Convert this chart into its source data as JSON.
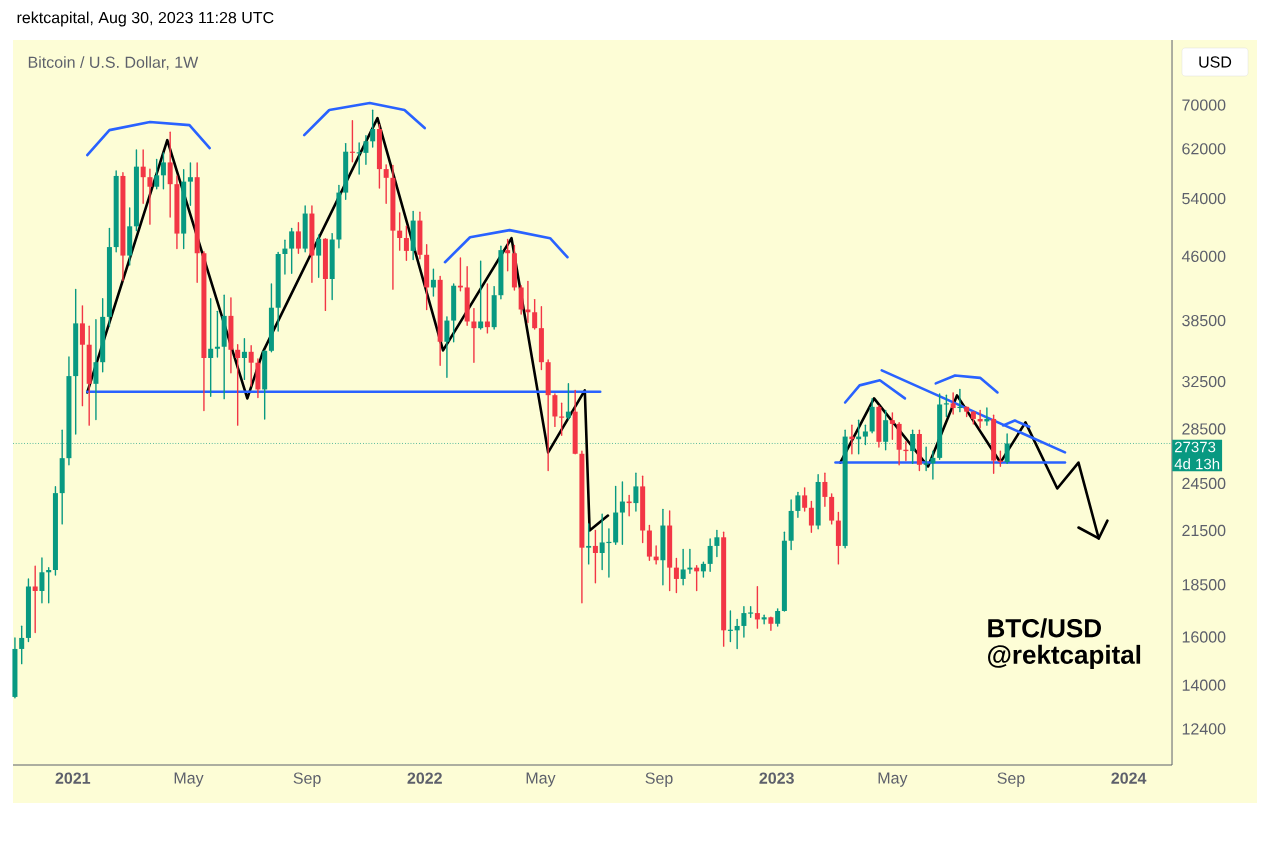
{
  "chart_data": {
    "type": "candlestick",
    "subtitle": "rektcapital, Aug 30, 2023 11:28 UTC",
    "title": "Bitcoin / U.S. Dollar, 1W",
    "annotations": [
      "USD",
      "4d 13h",
      "BTC/USD",
      "@rektcapital"
    ],
    "x": [
      "2020-11-02",
      "2020-11-09",
      "2020-11-16",
      "2020-11-23",
      "2020-11-30",
      "2020-12-07",
      "2020-12-14",
      "2020-12-21",
      "2020-12-28",
      "2021-01-04",
      "2021-01-11",
      "2021-01-18",
      "2021-01-25",
      "2021-02-01",
      "2021-02-08",
      "2021-02-15",
      "2021-02-22",
      "2021-03-01",
      "2021-03-08",
      "2021-03-15",
      "2021-03-22",
      "2021-03-29",
      "2021-04-05",
      "2021-04-12",
      "2021-04-19",
      "2021-04-26",
      "2021-05-03",
      "2021-05-10",
      "2021-05-17",
      "2021-05-24",
      "2021-05-31",
      "2021-06-07",
      "2021-06-14",
      "2021-06-21",
      "2021-06-28",
      "2021-07-05",
      "2021-07-12",
      "2021-07-19",
      "2021-07-26",
      "2021-08-02",
      "2021-08-09",
      "2021-08-16",
      "2021-08-23",
      "2021-08-30",
      "2021-09-06",
      "2021-09-13",
      "2021-09-20",
      "2021-09-27",
      "2021-10-04",
      "2021-10-11",
      "2021-10-18",
      "2021-10-25",
      "2021-11-01",
      "2021-11-08",
      "2021-11-15",
      "2021-11-22",
      "2021-11-29",
      "2021-12-06",
      "2021-12-13",
      "2021-12-20",
      "2021-12-27",
      "2022-01-03",
      "2022-01-10",
      "2022-01-17",
      "2022-01-24",
      "2022-01-31",
      "2022-02-07",
      "2022-02-14",
      "2022-02-21",
      "2022-02-28",
      "2022-03-07",
      "2022-03-14",
      "2022-03-21",
      "2022-03-28",
      "2022-04-04",
      "2022-04-11",
      "2022-04-18",
      "2022-04-25",
      "2022-05-02",
      "2022-05-09",
      "2022-05-16",
      "2022-05-23",
      "2022-05-30",
      "2022-06-06",
      "2022-06-13",
      "2022-06-20",
      "2022-06-27",
      "2022-07-04",
      "2022-07-11",
      "2022-07-18",
      "2022-07-25",
      "2022-08-01",
      "2022-08-08",
      "2022-08-15",
      "2022-08-22",
      "2022-08-29",
      "2022-09-05",
      "2022-09-12",
      "2022-09-19",
      "2022-09-26",
      "2022-10-03",
      "2022-10-10",
      "2022-10-17",
      "2022-10-24",
      "2022-10-31",
      "2022-11-07",
      "2022-11-14",
      "2022-11-21",
      "2022-11-28",
      "2022-12-05",
      "2022-12-12",
      "2022-12-19",
      "2022-12-26",
      "2023-01-02",
      "2023-01-09",
      "2023-01-16",
      "2023-01-23",
      "2023-01-30",
      "2023-02-06",
      "2023-02-13",
      "2023-02-20",
      "2023-02-27",
      "2023-03-06",
      "2023-03-13",
      "2023-03-20",
      "2023-03-27",
      "2023-04-03",
      "2023-04-10",
      "2023-04-17",
      "2023-04-24",
      "2023-05-01",
      "2023-05-08",
      "2023-05-15",
      "2023-05-22",
      "2023-05-29",
      "2023-06-05",
      "2023-06-12",
      "2023-06-19",
      "2023-06-26",
      "2023-07-03",
      "2023-07-10",
      "2023-07-17",
      "2023-07-24",
      "2023-07-31",
      "2023-08-07",
      "2023-08-14",
      "2023-08-21",
      "2023-08-28"
    ],
    "ohlc": [
      [
        13550,
        15960,
        13520,
        15480
      ],
      [
        15480,
        16490,
        14860,
        15960
      ],
      [
        15960,
        18800,
        15800,
        18410
      ],
      [
        18410,
        19480,
        16200,
        18180
      ],
      [
        18180,
        19920,
        17600,
        19150
      ],
      [
        19150,
        19400,
        17600,
        19270
      ],
      [
        19270,
        24280,
        19000,
        23850
      ],
      [
        23850,
        28400,
        21900,
        26280
      ],
      [
        26280,
        34800,
        25800,
        33000
      ],
      [
        33000,
        41950,
        28100,
        38200
      ],
      [
        38200,
        40100,
        30400,
        36000
      ],
      [
        36000,
        37900,
        28800,
        32300
      ],
      [
        32300,
        38600,
        29250,
        34300
      ],
      [
        34300,
        40900,
        33400,
        38900
      ],
      [
        38900,
        49700,
        37900,
        47200
      ],
      [
        47200,
        58300,
        46600,
        57500
      ],
      [
        57500,
        58000,
        43000,
        46100
      ],
      [
        46100,
        52600,
        44900,
        50000
      ],
      [
        50000,
        61800,
        49400,
        59000
      ],
      [
        59000,
        61800,
        53300,
        57300
      ],
      [
        57300,
        58600,
        50300,
        55800
      ],
      [
        55800,
        60200,
        55500,
        57600
      ],
      [
        57600,
        61300,
        55500,
        59700
      ],
      [
        59700,
        64900,
        51300,
        56200
      ],
      [
        56200,
        57500,
        47000,
        49000
      ],
      [
        49000,
        58500,
        47000,
        56600
      ],
      [
        56600,
        59600,
        53000,
        57300
      ],
      [
        57300,
        59600,
        42800,
        46400
      ],
      [
        46400,
        46600,
        30000,
        34700
      ],
      [
        34700,
        40900,
        31200,
        35600
      ],
      [
        35600,
        39500,
        34800,
        35800
      ],
      [
        35800,
        41300,
        31000,
        39000
      ],
      [
        39000,
        41000,
        33300,
        35500
      ],
      [
        35500,
        36000,
        28800,
        34700
      ],
      [
        34700,
        36600,
        32700,
        35300
      ],
      [
        35300,
        35900,
        32100,
        34250
      ],
      [
        34250,
        34600,
        31100,
        31800
      ],
      [
        31800,
        35400,
        29300,
        35400
      ],
      [
        35400,
        42600,
        35300,
        39900
      ],
      [
        39900,
        46500,
        37400,
        46300
      ],
      [
        46300,
        48100,
        43800,
        47000
      ],
      [
        47000,
        49700,
        43900,
        49300
      ],
      [
        49300,
        50500,
        46400,
        47000
      ],
      [
        47000,
        52900,
        46600,
        51800
      ],
      [
        51800,
        52900,
        42800,
        46100
      ],
      [
        46100,
        48800,
        43400,
        48300
      ],
      [
        48300,
        48300,
        39600,
        43200
      ],
      [
        43200,
        49000,
        40800,
        48200
      ],
      [
        48200,
        56000,
        47100,
        54900
      ],
      [
        54900,
        62900,
        53900,
        61500
      ],
      [
        61500,
        67000,
        59800,
        61300
      ],
      [
        61300,
        63000,
        57800,
        61300
      ],
      [
        61300,
        64300,
        59400,
        63300
      ],
      [
        63300,
        69000,
        62300,
        65500
      ],
      [
        65500,
        66300,
        55600,
        58600
      ],
      [
        58600,
        59300,
        53300,
        57200
      ],
      [
        57200,
        59200,
        42000,
        49400
      ],
      [
        49400,
        51900,
        46800,
        48400
      ],
      [
        48400,
        50000,
        45500,
        46700
      ],
      [
        46700,
        52100,
        45600,
        50800
      ],
      [
        50800,
        52000,
        45700,
        46200
      ],
      [
        46200,
        47500,
        39700,
        42200
      ],
      [
        42200,
        44400,
        41200,
        43100
      ],
      [
        43100,
        43500,
        34000,
        36300
      ],
      [
        36300,
        38900,
        32900,
        38500
      ],
      [
        38500,
        42600,
        36300,
        42400
      ],
      [
        42400,
        45800,
        41800,
        42200
      ],
      [
        42200,
        44700,
        38000,
        38400
      ],
      [
        38400,
        39800,
        34300,
        37700
      ],
      [
        37700,
        45400,
        37600,
        38400
      ],
      [
        38400,
        42600,
        37200,
        37800
      ],
      [
        37800,
        42300,
        37600,
        41300
      ],
      [
        41300,
        47300,
        40900,
        46800
      ],
      [
        46800,
        48200,
        44200,
        46400
      ],
      [
        46400,
        47400,
        41900,
        42200
      ],
      [
        42200,
        42400,
        39200,
        39700
      ],
      [
        39700,
        42900,
        38300,
        39400
      ],
      [
        39400,
        40800,
        37600,
        37700
      ],
      [
        37700,
        40000,
        33600,
        34300
      ],
      [
        34300,
        34500,
        25400,
        31300
      ],
      [
        31300,
        31400,
        28700,
        29500
      ],
      [
        29500,
        30600,
        28000,
        29400
      ],
      [
        29400,
        32300,
        29300,
        29900
      ],
      [
        29900,
        31700,
        26600,
        26600
      ],
      [
        26600,
        26800,
        17600,
        20500
      ],
      [
        20500,
        21900,
        19600,
        20600
      ],
      [
        20600,
        21500,
        18600,
        20200
      ],
      [
        20200,
        22500,
        19300,
        20800
      ],
      [
        20800,
        21600,
        18900,
        20800
      ],
      [
        20800,
        24300,
        20700,
        22600
      ],
      [
        22600,
        24600,
        20700,
        23300
      ],
      [
        23300,
        23700,
        22400,
        23200
      ],
      [
        23200,
        25200,
        22700,
        24300
      ],
      [
        24300,
        25000,
        20800,
        21500
      ],
      [
        21500,
        21800,
        19800,
        20000
      ],
      [
        20000,
        20600,
        19600,
        19800
      ],
      [
        19800,
        22800,
        18500,
        21800
      ],
      [
        21800,
        22700,
        18200,
        19400
      ],
      [
        19400,
        19900,
        18100,
        18800
      ],
      [
        18800,
        20400,
        18500,
        19300
      ],
      [
        19300,
        20400,
        19100,
        19400
      ],
      [
        19400,
        19500,
        18200,
        19200
      ],
      [
        19200,
        19700,
        18900,
        19600
      ],
      [
        19600,
        21000,
        19200,
        20600
      ],
      [
        20600,
        21500,
        20000,
        21100
      ],
      [
        21100,
        21400,
        15600,
        16300
      ],
      [
        16300,
        17200,
        15800,
        16300
      ],
      [
        16300,
        16800,
        15500,
        16500
      ],
      [
        16500,
        17400,
        16000,
        17100
      ],
      [
        17100,
        17400,
        16900,
        17100
      ],
      [
        17100,
        18400,
        16400,
        16800
      ],
      [
        16800,
        17000,
        16600,
        16900
      ],
      [
        16900,
        16900,
        16300,
        16600
      ],
      [
        16600,
        17300,
        16500,
        17200
      ],
      [
        17200,
        21400,
        17200,
        20900
      ],
      [
        20900,
        23400,
        20400,
        22700
      ],
      [
        22700,
        23900,
        22300,
        23700
      ],
      [
        23700,
        24200,
        22700,
        22900
      ],
      [
        22900,
        23300,
        21400,
        21800
      ],
      [
        21800,
        25100,
        21600,
        24600
      ],
      [
        24600,
        25200,
        23000,
        23600
      ],
      [
        23600,
        23800,
        21900,
        22100
      ],
      [
        22100,
        22600,
        19600,
        20600
      ],
      [
        20600,
        28400,
        20500,
        27900
      ],
      [
        27900,
        28800,
        26600,
        27700
      ],
      [
        27700,
        29200,
        26600,
        27900
      ],
      [
        27900,
        28800,
        27300,
        28300
      ],
      [
        28300,
        31000,
        28200,
        30300
      ],
      [
        30300,
        30400,
        27100,
        27500
      ],
      [
        27500,
        30000,
        26900,
        29200
      ],
      [
        29200,
        29800,
        27700,
        28900
      ],
      [
        28900,
        29000,
        25800,
        26900
      ],
      [
        26900,
        27500,
        26100,
        26800
      ],
      [
        26800,
        28400,
        25900,
        28100
      ],
      [
        28100,
        28400,
        25400,
        25800
      ],
      [
        25800,
        27100,
        25400,
        25900
      ],
      [
        25900,
        26800,
        24800,
        26300
      ],
      [
        26300,
        31400,
        26200,
        30500
      ],
      [
        30500,
        31300,
        29500,
        30600
      ],
      [
        30600,
        31500,
        29700,
        30200
      ],
      [
        30200,
        31800,
        29900,
        30300
      ],
      [
        30300,
        30300,
        29500,
        29900
      ],
      [
        29900,
        29900,
        28900,
        29300
      ],
      [
        29300,
        30000,
        28600,
        29100
      ],
      [
        29100,
        30200,
        28800,
        29300
      ],
      [
        29300,
        29600,
        25200,
        26100
      ],
      [
        26100,
        26800,
        25700,
        26000
      ],
      [
        26000,
        28100,
        25900,
        27373
      ]
    ],
    "series": [
      {
        "type": "line",
        "color": "#000000",
        "x": [
          "2021-01-16",
          "2021-04-09",
          "2021-07-01",
          "2021-07-17",
          "2021-11-13",
          "2022-01-20",
          "2022-04-01",
          "2022-05-09",
          "2022-06-16",
          "2022-06-21",
          "2022-07-10"
        ],
        "values": [
          31540,
          63500,
          31020,
          35250,
          67500,
          35440,
          48380,
          26700,
          31720,
          21500,
          22410
        ]
      },
      {
        "type": "line",
        "color": "#000000",
        "x": [
          "2023-03-08",
          "2023-04-12",
          "2023-06-07",
          "2023-07-07",
          "2023-08-21",
          "2023-09-16",
          "2023-10-19",
          "2023-11-10",
          "2023-12-01",
          "2023-12-10"
        ],
        "values": [
          25960,
          31020,
          25680,
          31280,
          25960,
          29020,
          24160,
          25960,
          21030,
          22100
        ]
      },
      {
        "type": "line",
        "color": "#000000",
        "x": [
          "2023-11-10",
          "2023-12-01"
        ],
        "values": [
          21680,
          21030
        ]
      },
      {
        "type": "line",
        "color": "#2962ff",
        "x": [
          "2021-01-16",
          "2022-07-02"
        ],
        "values": [
          31600,
          31600
        ]
      },
      {
        "type": "line",
        "color": "#2962ff",
        "x": [
          "2023-03-03",
          "2023-10-27"
        ],
        "values": [
          25960,
          25960
        ]
      },
      {
        "type": "line",
        "color": "#2962ff",
        "x": [
          "2023-04-20",
          "2023-10-27"
        ],
        "values": [
          33530,
          26700
        ]
      },
      {
        "type": "line",
        "color": "#2962ff",
        "x": [
          "2021-01-16",
          "2021-02-08",
          "2021-03-22",
          "2021-05-02",
          "2021-05-23"
        ],
        "values": [
          60920,
          65300,
          66780,
          66210,
          62120
        ]
      },
      {
        "type": "line",
        "color": "#2962ff",
        "x": [
          "2021-08-29",
          "2021-09-24",
          "2021-11-05",
          "2021-12-11",
          "2022-01-01"
        ],
        "values": [
          64400,
          69040,
          70390,
          69040,
          65670
        ]
      },
      {
        "type": "line",
        "color": "#2962ff",
        "x": [
          "2022-01-22",
          "2022-02-17",
          "2022-03-30",
          "2022-05-11",
          "2022-05-29"
        ],
        "values": [
          45260,
          48510,
          49470,
          48380,
          45890
        ]
      },
      {
        "type": "line",
        "color": "#2962ff",
        "x": [
          "2023-03-13",
          "2023-03-28",
          "2023-04-18",
          "2023-05-14"
        ],
        "values": [
          30670,
          32160,
          32620,
          31020
        ]
      },
      {
        "type": "line",
        "color": "#2962ff",
        "x": [
          "2023-06-15",
          "2023-07-05",
          "2023-07-31",
          "2023-08-18"
        ],
        "values": [
          32340,
          33060,
          32840,
          31540
        ]
      },
      {
        "type": "line",
        "color": "#2962ff",
        "x": [
          "2023-08-24",
          "2023-09-05",
          "2023-09-20"
        ],
        "values": [
          28780,
          29170,
          28670
        ]
      }
    ],
    "ref_lines": [
      {
        "axis": "y",
        "value": 27373,
        "label": "27373",
        "color": "#089981",
        "line_style": "dotted"
      }
    ],
    "log": "y",
    "xlim": [
      "2020-10-31",
      "2024-02-15"
    ],
    "xticks": [
      {
        "value": "2021-01-01",
        "label": "2021"
      },
      {
        "value": "2021-05-01",
        "label": "May"
      },
      {
        "value": "2021-09-01",
        "label": "Sep"
      },
      {
        "value": "2022-01-01",
        "label": "2022"
      },
      {
        "value": "2022-05-01",
        "label": "May"
      },
      {
        "value": "2022-09-01",
        "label": "Sep"
      },
      {
        "value": "2023-01-01",
        "label": "2023"
      },
      {
        "value": "2023-05-01",
        "label": "May"
      },
      {
        "value": "2023-09-01",
        "label": "Sep"
      },
      {
        "value": "2024-01-01",
        "label": "2024"
      }
    ],
    "ylim": [
      11220,
      83850
    ],
    "yticks": [
      12400,
      14000,
      16000,
      18500,
      21500,
      24500,
      28500,
      32500,
      38500,
      46000,
      54000,
      62000,
      70000
    ]
  }
}
